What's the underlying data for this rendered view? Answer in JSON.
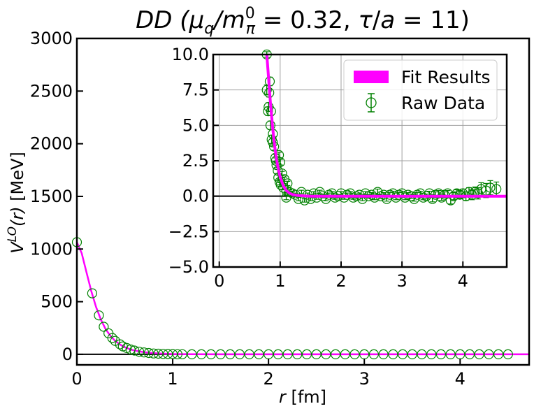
{
  "chart_data": [
    {
      "id": "main",
      "type": "scatter",
      "title": "DD (μq/m0π = 0.32, τ/a = 11)",
      "title_parts": {
        "prefix": "DD (",
        "mu": "μ",
        "mu_sub": "q",
        "slash": "/",
        "m": "m",
        "m_sup": "0",
        "m_sub": "π",
        "eq1": " = 0.32, ",
        "tau": "τ",
        "slash2": "/",
        "a": "a",
        "eq2": " = 11)"
      },
      "xlabel": "r [fm]",
      "xlabel_parts": {
        "var": "r",
        "unit": " [fm]"
      },
      "ylabel": "V^LO(r) [MeV]",
      "ylabel_parts": {
        "var": "V",
        "sup": "LO",
        "arg": "(r)",
        "unit": " [MeV]"
      },
      "xlim": [
        0,
        4.72
      ],
      "ylim": [
        -100,
        3000
      ],
      "xticks": [
        0,
        1,
        2,
        3,
        4
      ],
      "xtick_labels": [
        "0",
        "1",
        "2",
        "3",
        "4"
      ],
      "yticks": [
        0,
        500,
        1000,
        1500,
        2000,
        2500,
        3000
      ],
      "ytick_labels": [
        "0",
        "500",
        "1000",
        "1500",
        "2000",
        "2500",
        "3000"
      ],
      "grid": false,
      "hline": 0,
      "series": [
        {
          "kind": "raw",
          "color": "#008000",
          "points": [
            [
              0.0,
              1065
            ],
            [
              0.16,
              580
            ],
            [
              0.23,
              370
            ],
            [
              0.28,
              262
            ],
            [
              0.33,
              200
            ],
            [
              0.37,
              155
            ],
            [
              0.4,
              128
            ],
            [
              0.45,
              95
            ],
            [
              0.48,
              75
            ],
            [
              0.52,
              60
            ],
            [
              0.56,
              46
            ],
            [
              0.6,
              36
            ],
            [
              0.65,
              25
            ],
            [
              0.7,
              18
            ],
            [
              0.75,
              13
            ],
            [
              0.8,
              8
            ],
            [
              0.85,
              6
            ],
            [
              0.9,
              4
            ],
            [
              0.95,
              3
            ],
            [
              1.0,
              2
            ],
            [
              1.05,
              1
            ],
            [
              1.1,
              1
            ],
            [
              1.2,
              0
            ],
            [
              1.3,
              0
            ],
            [
              1.4,
              0
            ],
            [
              1.5,
              0
            ],
            [
              1.6,
              0
            ],
            [
              1.7,
              0
            ],
            [
              1.8,
              0
            ],
            [
              1.9,
              0
            ],
            [
              2.0,
              0
            ],
            [
              2.1,
              0
            ],
            [
              2.2,
              0
            ],
            [
              2.3,
              0
            ],
            [
              2.4,
              0
            ],
            [
              2.5,
              0
            ],
            [
              2.6,
              0
            ],
            [
              2.7,
              0
            ],
            [
              2.8,
              0
            ],
            [
              2.9,
              0
            ],
            [
              3.0,
              0
            ],
            [
              3.1,
              0
            ],
            [
              3.2,
              0
            ],
            [
              3.3,
              0
            ],
            [
              3.4,
              0
            ],
            [
              3.5,
              0
            ],
            [
              3.6,
              0
            ],
            [
              3.7,
              0
            ],
            [
              3.8,
              0
            ],
            [
              3.9,
              0
            ],
            [
              4.0,
              0
            ],
            [
              4.1,
              0
            ],
            [
              4.2,
              0
            ],
            [
              4.3,
              0
            ],
            [
              4.4,
              0
            ],
            [
              4.5,
              0
            ]
          ]
        },
        {
          "kind": "fit",
          "color": "#ff00ff",
          "points": [
            [
              0.0,
              1065
            ],
            [
              0.05,
              960
            ],
            [
              0.1,
              780
            ],
            [
              0.15,
              600
            ],
            [
              0.2,
              450
            ],
            [
              0.25,
              330
            ],
            [
              0.3,
              240
            ],
            [
              0.35,
              175
            ],
            [
              0.4,
              128
            ],
            [
              0.45,
              93
            ],
            [
              0.5,
              68
            ],
            [
              0.55,
              50
            ],
            [
              0.6,
              37
            ],
            [
              0.7,
              20
            ],
            [
              0.8,
              11
            ],
            [
              0.9,
              6
            ],
            [
              1.0,
              3
            ],
            [
              1.2,
              1
            ],
            [
              1.5,
              0
            ],
            [
              2.0,
              0
            ],
            [
              3.0,
              0
            ],
            [
              4.0,
              0
            ],
            [
              4.72,
              0
            ]
          ]
        }
      ]
    },
    {
      "id": "inset",
      "type": "scatter",
      "xlim": [
        -0.1,
        4.72
      ],
      "ylim": [
        -5,
        10
      ],
      "xticks": [
        0,
        1,
        2,
        3,
        4
      ],
      "xtick_labels": [
        "0",
        "1",
        "2",
        "3",
        "4"
      ],
      "yticks": [
        -5,
        -2.5,
        0,
        2.5,
        5,
        7.5,
        10
      ],
      "ytick_labels": [
        "−5.0",
        "−2.5",
        "0.0",
        "2.5",
        "5.0",
        "7.5",
        "10.0"
      ],
      "grid": true,
      "hline": 0,
      "legend_position": "top-right",
      "legend": [
        {
          "label": "Fit Results",
          "kind": "fit",
          "color": "#ff00ff"
        },
        {
          "label": "Raw Data",
          "kind": "raw",
          "color": "#008000"
        }
      ],
      "series": [
        {
          "kind": "raw",
          "name": "Raw Data",
          "color": "#008000",
          "points": [
            [
              0.78,
              10.0,
              0.2
            ],
            [
              0.78,
              7.5,
              0.35
            ],
            [
              0.81,
              6.3,
              0.3
            ],
            [
              0.8,
              6.0,
              0.3
            ],
            [
              0.83,
              8.1,
              0.3
            ],
            [
              0.82,
              7.3,
              0.3
            ],
            [
              0.84,
              5.0,
              0.3
            ],
            [
              0.85,
              6.0,
              0.3
            ],
            [
              0.86,
              4.0,
              0.3
            ],
            [
              0.88,
              4.4,
              0.3
            ],
            [
              0.88,
              3.8,
              0.25
            ],
            [
              0.9,
              3.5,
              0.25
            ],
            [
              0.92,
              2.7,
              0.25
            ],
            [
              0.93,
              2.5,
              0.2
            ],
            [
              0.94,
              2.2,
              0.2
            ],
            [
              0.96,
              1.8,
              0.2
            ],
            [
              0.98,
              2.9,
              0.2
            ],
            [
              1.0,
              2.4,
              0.2
            ],
            [
              0.97,
              1.3,
              0.2
            ],
            [
              0.99,
              1.0,
              0.2
            ],
            [
              1.01,
              0.8,
              0.15
            ],
            [
              1.03,
              1.6,
              0.15
            ],
            [
              1.05,
              0.6,
              0.15
            ],
            [
              1.07,
              1.2,
              0.15
            ],
            [
              1.1,
              0.4,
              0.15
            ],
            [
              1.12,
              0.9,
              0.15
            ],
            [
              1.15,
              0.3,
              0.15
            ],
            [
              1.2,
              0.2,
              0.15
            ],
            [
              1.1,
              -0.1,
              0.15
            ],
            [
              1.25,
              0.1,
              0.12
            ],
            [
              1.3,
              -0.2,
              0.12
            ],
            [
              1.35,
              0.3,
              0.12
            ],
            [
              1.4,
              -0.3,
              0.12
            ],
            [
              1.45,
              0.1,
              0.12
            ],
            [
              1.5,
              -0.2,
              0.12
            ],
            [
              1.55,
              0.2,
              0.12
            ],
            [
              1.6,
              -0.1,
              0.12
            ],
            [
              1.65,
              0.3,
              0.12
            ],
            [
              1.7,
              0.0,
              0.12
            ],
            [
              1.75,
              -0.2,
              0.12
            ],
            [
              1.8,
              0.1,
              0.12
            ],
            [
              1.85,
              0.2,
              0.12
            ],
            [
              1.9,
              -0.1,
              0.12
            ],
            [
              1.95,
              0.0,
              0.12
            ],
            [
              2.0,
              0.2,
              0.12
            ],
            [
              2.05,
              -0.1,
              0.12
            ],
            [
              2.1,
              0.1,
              0.12
            ],
            [
              2.15,
              0.2,
              0.12
            ],
            [
              2.2,
              -0.1,
              0.12
            ],
            [
              2.25,
              0.0,
              0.12
            ],
            [
              2.3,
              0.1,
              0.12
            ],
            [
              2.35,
              -0.2,
              0.12
            ],
            [
              2.4,
              0.2,
              0.12
            ],
            [
              2.45,
              0.0,
              0.12
            ],
            [
              2.5,
              0.1,
              0.15
            ],
            [
              2.55,
              -0.1,
              0.15
            ],
            [
              2.6,
              0.3,
              0.2
            ],
            [
              2.65,
              0.0,
              0.15
            ],
            [
              2.7,
              0.1,
              0.15
            ],
            [
              2.75,
              -0.2,
              0.15
            ],
            [
              2.8,
              0.1,
              0.15
            ],
            [
              2.85,
              0.2,
              0.15
            ],
            [
              2.9,
              -0.1,
              0.15
            ],
            [
              2.95,
              0.1,
              0.15
            ],
            [
              3.0,
              0.2,
              0.15
            ],
            [
              3.05,
              -0.1,
              0.15
            ],
            [
              3.1,
              0.1,
              0.15
            ],
            [
              3.15,
              0.0,
              0.15
            ],
            [
              3.2,
              -0.2,
              0.15
            ],
            [
              3.25,
              0.1,
              0.15
            ],
            [
              3.3,
              0.2,
              0.15
            ],
            [
              3.35,
              -0.1,
              0.15
            ],
            [
              3.4,
              0.0,
              0.15
            ],
            [
              3.45,
              0.2,
              0.15
            ],
            [
              3.5,
              -0.2,
              0.2
            ],
            [
              3.55,
              0.1,
              0.2
            ],
            [
              3.6,
              0.2,
              0.2
            ],
            [
              3.65,
              -0.1,
              0.2
            ],
            [
              3.7,
              0.1,
              0.2
            ],
            [
              3.75,
              0.2,
              0.2
            ],
            [
              3.8,
              -0.3,
              0.25
            ],
            [
              3.85,
              0.0,
              0.25
            ],
            [
              3.9,
              0.2,
              0.25
            ],
            [
              3.95,
              0.1,
              0.25
            ],
            [
              4.0,
              0.2,
              0.3
            ],
            [
              4.05,
              0.0,
              0.3
            ],
            [
              4.1,
              0.3,
              0.3
            ],
            [
              4.15,
              0.1,
              0.35
            ],
            [
              4.2,
              0.3,
              0.35
            ],
            [
              4.25,
              0.2,
              0.4
            ],
            [
              4.3,
              0.5,
              0.45
            ],
            [
              4.38,
              0.4,
              0.5
            ],
            [
              4.45,
              0.6,
              0.5
            ],
            [
              4.55,
              0.5,
              0.5
            ]
          ]
        },
        {
          "kind": "fit",
          "name": "Fit Results",
          "color": "#ff00ff",
          "points": [
            [
              0.78,
              10.0
            ],
            [
              0.8,
              8.9
            ],
            [
              0.82,
              7.7
            ],
            [
              0.84,
              6.6
            ],
            [
              0.86,
              5.6
            ],
            [
              0.88,
              4.7
            ],
            [
              0.9,
              3.9
            ],
            [
              0.92,
              3.2
            ],
            [
              0.94,
              2.6
            ],
            [
              0.96,
              2.1
            ],
            [
              0.98,
              1.7
            ],
            [
              1.0,
              1.35
            ],
            [
              1.05,
              0.75
            ],
            [
              1.1,
              0.4
            ],
            [
              1.15,
              0.22
            ],
            [
              1.2,
              0.12
            ],
            [
              1.3,
              0.04
            ],
            [
              1.5,
              0.0
            ],
            [
              2.0,
              0.0
            ],
            [
              3.0,
              0.0
            ],
            [
              4.0,
              0.0
            ],
            [
              4.72,
              0.0
            ]
          ]
        }
      ]
    }
  ]
}
